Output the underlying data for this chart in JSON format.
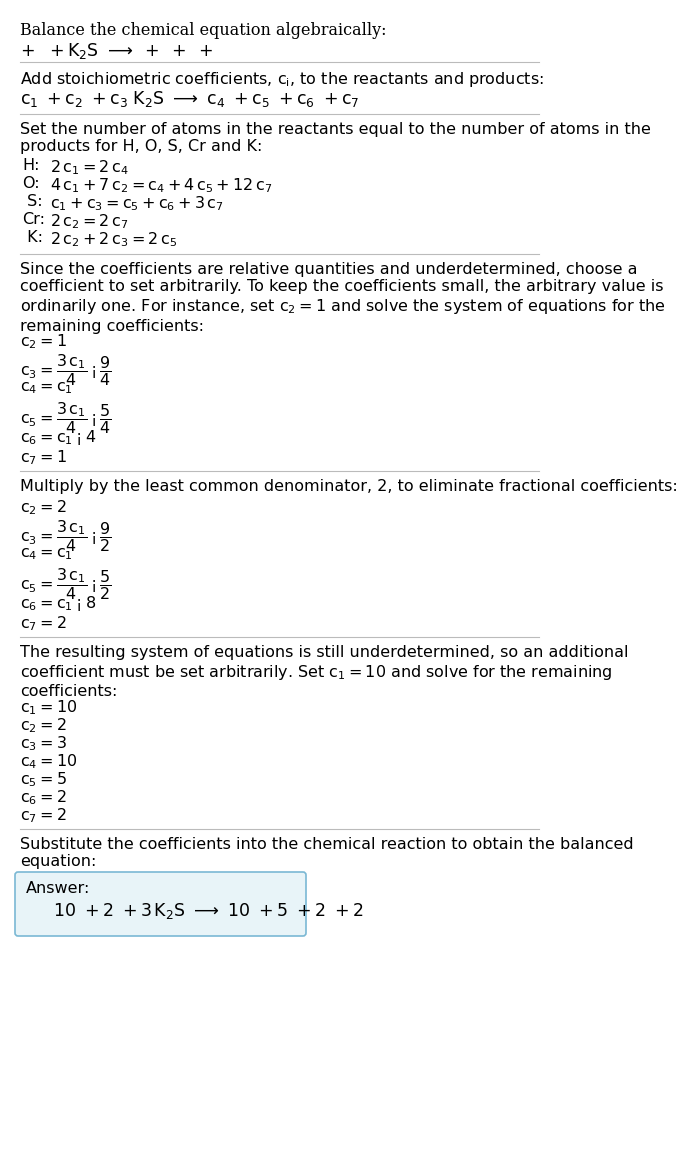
{
  "title": "Balance the chemical equation algebraically:",
  "bg_color": "#ffffff",
  "text_color": "#000000",
  "answer_box_color": "#e8f4f8",
  "answer_box_border": "#7ab8d4",
  "font_size": 11.5,
  "sections": [
    {
      "type": "header",
      "lines": [
        {
          "type": "plain",
          "text": "Balance the chemical equation algebraically:"
        },
        {
          "type": "math",
          "text": "+ +K₂S ⟶ + + +"
        }
      ]
    },
    {
      "type": "divider"
    },
    {
      "type": "body",
      "lines": [
        {
          "type": "plain",
          "text": "Add stoichiometric coefficients, $c_i$, to the reactants and products:"
        },
        {
          "type": "math",
          "text": "$c_1$ +$c_2$ +$c_3$ K$_2$S ⟶ $c_4$ +$c_5$ +$c_6$ +$c_7$"
        }
      ]
    },
    {
      "type": "divider"
    },
    {
      "type": "body",
      "lines": [
        {
          "type": "plain",
          "text": "Set the number of atoms in the reactants equal to the number of atoms in the\nproducts for H, O, S, Cr and K:"
        },
        {
          "type": "equation",
          "label": "H:",
          "eq": "$2\\,c_1 = 2\\,c_4$"
        },
        {
          "type": "equation",
          "label": "O:",
          "eq": "$4\\,c_1 + 7\\,c_2 = c_4 + 4\\,c_5 + 12\\,c_7$"
        },
        {
          "type": "equation",
          "label": " S:",
          "eq": "$c_1 + c_3 = c_5 + c_6 + 3\\,c_7$"
        },
        {
          "type": "equation",
          "label": "Cr:",
          "eq": "$2\\,c_2 = 2\\,c_7$"
        },
        {
          "type": "equation",
          "label": " K:",
          "eq": "$2\\,c_2 + 2\\,c_3 = 2\\,c_5$"
        }
      ]
    },
    {
      "type": "divider"
    },
    {
      "type": "body",
      "lines": [
        {
          "type": "plain",
          "text": "Since the coefficients are relative quantities and underdetermined, choose a\ncoefficient to set arbitrarily. To keep the coefficients small, the arbitrary value is\nordinarily one. For instance, set $c_2 = 1$ and solve the system of equations for the\nremaining coefficients:"
        },
        {
          "type": "math_eq",
          "text": "$c_2 = 1$"
        },
        {
          "type": "math_frac",
          "text": "$c_3 = \\dfrac{3\\,c_1}{4} - \\dfrac{9}{4}$"
        },
        {
          "type": "math_eq",
          "text": "$c_4 = c_1$"
        },
        {
          "type": "math_frac",
          "text": "$c_5 = \\dfrac{3\\,c_1}{4} - \\dfrac{5}{4}$"
        },
        {
          "type": "math_eq",
          "text": "$c_6 = c_1 - 4$"
        },
        {
          "type": "math_eq",
          "text": "$c_7 = 1$"
        }
      ]
    },
    {
      "type": "divider"
    },
    {
      "type": "body",
      "lines": [
        {
          "type": "plain",
          "text": "Multiply by the least common denominator, 2, to eliminate fractional coefficients:"
        },
        {
          "type": "math_eq",
          "text": "$c_2 = 2$"
        },
        {
          "type": "math_frac",
          "text": "$c_3 = \\dfrac{3\\,c_1}{4} - \\dfrac{9}{2}$"
        },
        {
          "type": "math_eq",
          "text": "$c_4 = c_1$"
        },
        {
          "type": "math_frac",
          "text": "$c_5 = \\dfrac{3\\,c_1}{4} - \\dfrac{5}{2}$"
        },
        {
          "type": "math_eq",
          "text": "$c_6 = c_1 - 8$"
        },
        {
          "type": "math_eq",
          "text": "$c_7 = 2$"
        }
      ]
    },
    {
      "type": "divider"
    },
    {
      "type": "body",
      "lines": [
        {
          "type": "plain",
          "text": "The resulting system of equations is still underdetermined, so an additional\ncoefficient must be set arbitrarily. Set $c_1 = 10$ and solve for the remaining\ncoefficients:"
        },
        {
          "type": "math_eq",
          "text": "$c_1 = 10$"
        },
        {
          "type": "math_eq",
          "text": "$c_2 = 2$"
        },
        {
          "type": "math_eq",
          "text": "$c_3 = 3$"
        },
        {
          "type": "math_eq",
          "text": "$c_4 = 10$"
        },
        {
          "type": "math_eq",
          "text": "$c_5 = 5$"
        },
        {
          "type": "math_eq",
          "text": "$c_6 = 2$"
        },
        {
          "type": "math_eq",
          "text": "$c_7 = 2$"
        }
      ]
    },
    {
      "type": "divider"
    },
    {
      "type": "body",
      "lines": [
        {
          "type": "plain",
          "text": "Substitute the coefficients into the chemical reaction to obtain the balanced\nequation:"
        }
      ]
    },
    {
      "type": "answer_box",
      "label": "Answer:",
      "equation": "$10$ +$2$ +$3\\,$ K$_2$S $\\longrightarrow$ $10$ +$5$ +$2$ +$2$"
    }
  ]
}
